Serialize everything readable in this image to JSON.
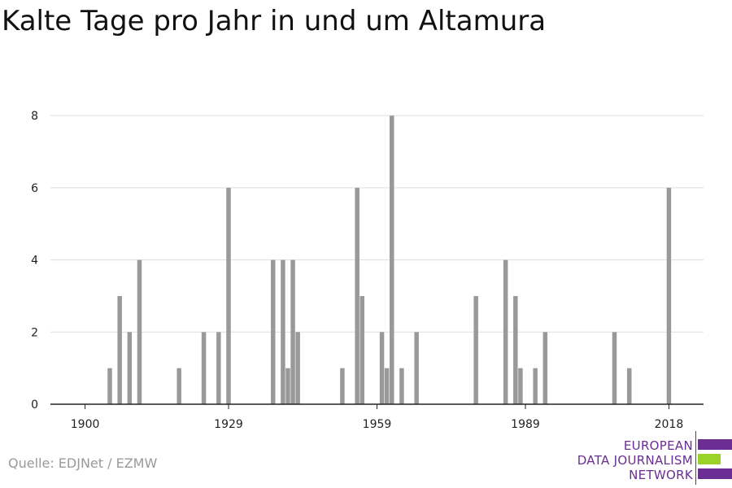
{
  "title": "Kalte Tage pro Jahr in und um Altamura",
  "source": "Quelle: EDJNet / EZMW",
  "logo": {
    "lines": [
      "EUROPEAN",
      "DATA JOURNALISM",
      "NETWORK"
    ],
    "colors": {
      "purple": "#6a2e92",
      "green": "#9bd22a"
    }
  },
  "chart_data": {
    "type": "bar",
    "title": "Kalte Tage pro Jahr in und um Altamura",
    "xlabel": "",
    "ylabel": "",
    "xlim": [
      1893,
      2025
    ],
    "ylim": [
      0,
      8.5
    ],
    "x_ticks": [
      1900,
      1929,
      1959,
      1989,
      2018
    ],
    "y_ticks": [
      0,
      2,
      4,
      6,
      8
    ],
    "grid": true,
    "bar_color": "#999999",
    "x": [
      1905,
      1907,
      1909,
      1911,
      1919,
      1924,
      1927,
      1929,
      1938,
      1940,
      1941,
      1942,
      1943,
      1952,
      1955,
      1956,
      1960,
      1961,
      1962,
      1964,
      1967,
      1979,
      1985,
      1987,
      1988,
      1991,
      1993,
      2007,
      2010,
      2018
    ],
    "values": [
      1,
      3,
      2,
      4,
      1,
      2,
      2,
      6,
      4,
      4,
      1,
      4,
      2,
      1,
      6,
      3,
      2,
      1,
      8,
      1,
      2,
      3,
      4,
      3,
      1,
      1,
      2,
      2,
      1,
      6
    ]
  }
}
